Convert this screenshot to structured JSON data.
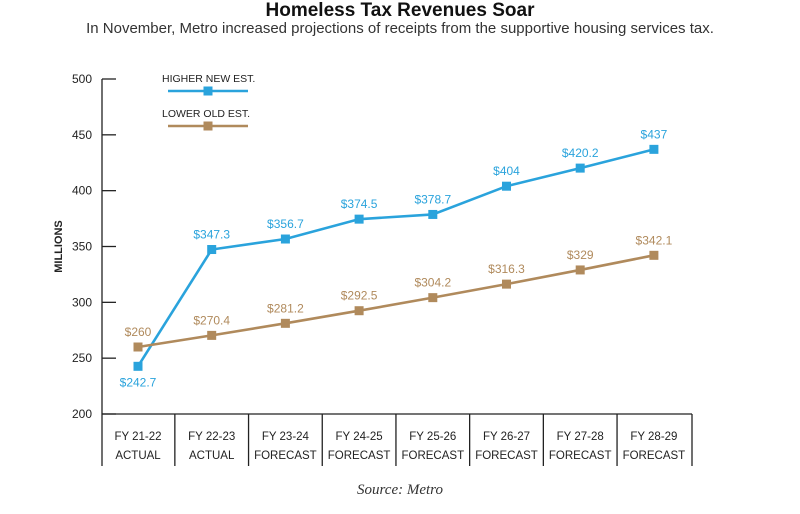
{
  "chart_data": {
    "type": "line",
    "title": "Homeless Tax Revenues Soar",
    "subtitle": "In November, Metro increased projections of receipts from the supportive housing services tax.",
    "source": "Source: Metro",
    "ylabel": "MILLIONS",
    "ylim": [
      200,
      500
    ],
    "yticks": [
      200,
      250,
      300,
      350,
      400,
      450,
      500
    ],
    "categories": [
      {
        "line1": "FY 21-22",
        "line2": "ACTUAL"
      },
      {
        "line1": "FY 22-23",
        "line2": "ACTUAL"
      },
      {
        "line1": "FY 23-24",
        "line2": "FORECAST"
      },
      {
        "line1": "FY 24-25",
        "line2": "FORECAST"
      },
      {
        "line1": "FY 25-26",
        "line2": "FORECAST"
      },
      {
        "line1": "FY 26-27",
        "line2": "FORECAST"
      },
      {
        "line1": "FY 27-28",
        "line2": "FORECAST"
      },
      {
        "line1": "FY 28-29",
        "line2": "FORECAST"
      }
    ],
    "series": [
      {
        "name": "HIGHER NEW EST.",
        "color": "#2aa3dc",
        "values": [
          242.7,
          347.3,
          356.7,
          374.5,
          378.7,
          404,
          420.2,
          437
        ],
        "labels": [
          "$242.7",
          "$347.3",
          "$356.7",
          "$374.5",
          "$378.7",
          "$404",
          "$420.2",
          "$437"
        ]
      },
      {
        "name": "LOWER OLD EST.",
        "color": "#b08a5c",
        "values": [
          260,
          270.4,
          281.2,
          292.5,
          304.2,
          316.3,
          329,
          342.1
        ],
        "labels": [
          "$260",
          "$270.4",
          "$281.2",
          "$292.5",
          "$304.2",
          "$316.3",
          "$329",
          "$342.1"
        ]
      }
    ],
    "legend": "top-left",
    "grid": false
  }
}
